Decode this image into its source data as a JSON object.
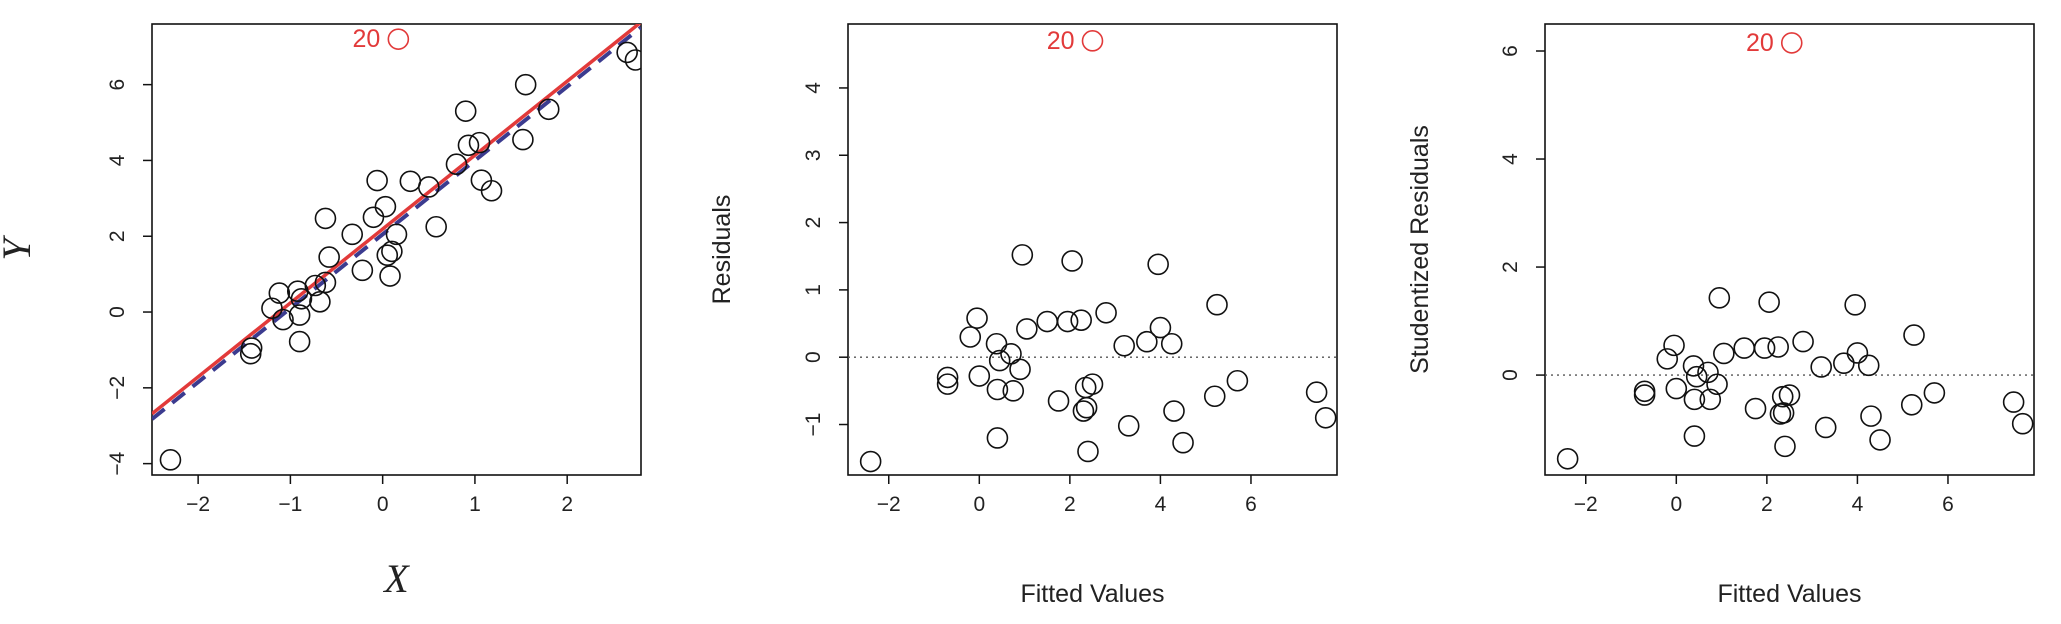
{
  "colors": {
    "outlier": "#e23a3a",
    "ls_line": "#e23a3a",
    "dashed_line": "#3b3b8f",
    "points": "#111111"
  },
  "chart_data": [
    {
      "type": "scatter",
      "xlabel": "X",
      "ylabel": "Y",
      "xlim": [
        -2.5,
        2.8
      ],
      "ylim": [
        -4.3,
        7.6
      ],
      "xticks": [
        -2,
        -1,
        0,
        1,
        2
      ],
      "yticks": [
        -4,
        -2,
        0,
        2,
        4,
        6
      ],
      "outlier": {
        "label": "20",
        "x": 0.17,
        "y": 7.2
      },
      "points": [
        [
          -2.3,
          -3.9
        ],
        [
          -1.43,
          -1.1
        ],
        [
          -1.42,
          -0.95
        ],
        [
          -1.2,
          0.1
        ],
        [
          -1.12,
          0.5
        ],
        [
          -1.08,
          -0.2
        ],
        [
          -0.92,
          0.55
        ],
        [
          -0.9,
          -0.08
        ],
        [
          -0.9,
          -0.78
        ],
        [
          -0.88,
          0.35
        ],
        [
          -0.73,
          0.7
        ],
        [
          -0.68,
          0.27
        ],
        [
          -0.62,
          0.78
        ],
        [
          -0.62,
          2.47
        ],
        [
          -0.58,
          1.45
        ],
        [
          -0.33,
          2.05
        ],
        [
          -0.22,
          1.1
        ],
        [
          -0.1,
          2.5
        ],
        [
          -0.06,
          3.47
        ],
        [
          0.03,
          2.78
        ],
        [
          0.05,
          1.5
        ],
        [
          0.08,
          0.95
        ],
        [
          0.1,
          1.6
        ],
        [
          0.15,
          2.05
        ],
        [
          0.3,
          3.45
        ],
        [
          0.5,
          3.3
        ],
        [
          0.58,
          2.25
        ],
        [
          0.8,
          3.9
        ],
        [
          0.9,
          5.3
        ],
        [
          0.93,
          4.4
        ],
        [
          1.05,
          4.47
        ],
        [
          1.07,
          3.48
        ],
        [
          1.18,
          3.2
        ],
        [
          1.52,
          4.55
        ],
        [
          1.55,
          6.0
        ],
        [
          1.8,
          5.35
        ],
        [
          2.65,
          6.85
        ],
        [
          2.74,
          6.65
        ]
      ],
      "fit_lines": [
        {
          "style": "solid",
          "color": "#e23a3a",
          "intercept": 2.19,
          "slope": 1.95
        },
        {
          "style": "dashed",
          "color": "#3b3b8f",
          "intercept": 2.05,
          "slope": 1.95
        }
      ]
    },
    {
      "type": "scatter",
      "xlabel": "Fitted Values",
      "ylabel": "Residuals",
      "xlim": [
        -2.9,
        7.9
      ],
      "ylim": [
        -1.75,
        4.95
      ],
      "xticks": [
        -2,
        0,
        2,
        4,
        6
      ],
      "yticks": [
        -1,
        0,
        1,
        2,
        3,
        4
      ],
      "hline": 0,
      "outlier": {
        "label": "20",
        "x": 2.5,
        "y": 4.7
      },
      "points": [
        [
          -2.4,
          -1.55
        ],
        [
          -0.7,
          -0.3
        ],
        [
          -0.7,
          -0.4
        ],
        [
          -0.2,
          0.3
        ],
        [
          -0.05,
          0.58
        ],
        [
          0,
          -0.28
        ],
        [
          0.38,
          0.2
        ],
        [
          0.4,
          -0.48
        ],
        [
          0.4,
          -1.2
        ],
        [
          0.45,
          -0.05
        ],
        [
          0.7,
          0.05
        ],
        [
          0.75,
          -0.5
        ],
        [
          0.9,
          -0.18
        ],
        [
          0.95,
          1.52
        ],
        [
          1.05,
          0.42
        ],
        [
          1.5,
          0.53
        ],
        [
          1.75,
          -0.65
        ],
        [
          1.95,
          0.53
        ],
        [
          2.05,
          1.43
        ],
        [
          2.25,
          0.55
        ],
        [
          2.3,
          -0.8
        ],
        [
          2.35,
          -0.45
        ],
        [
          2.37,
          -0.75
        ],
        [
          2.4,
          -1.4
        ],
        [
          2.5,
          -0.4
        ],
        [
          2.8,
          0.66
        ],
        [
          3.2,
          0.17
        ],
        [
          3.3,
          -1.02
        ],
        [
          3.7,
          0.23
        ],
        [
          3.95,
          1.38
        ],
        [
          4.0,
          0.44
        ],
        [
          4.25,
          0.2
        ],
        [
          4.3,
          -0.8
        ],
        [
          4.5,
          -1.27
        ],
        [
          5.2,
          -0.58
        ],
        [
          5.25,
          0.78
        ],
        [
          5.7,
          -0.35
        ],
        [
          7.45,
          -0.52
        ],
        [
          7.65,
          -0.9
        ]
      ]
    },
    {
      "type": "scatter",
      "xlabel": "Fitted Values",
      "ylabel": "Studentized Residuals",
      "xlim": [
        -2.9,
        7.9
      ],
      "ylim": [
        -1.85,
        6.5
      ],
      "xticks": [
        -2,
        0,
        2,
        4,
        6
      ],
      "yticks": [
        0,
        2,
        4,
        6
      ],
      "hline": 0,
      "outlier": {
        "label": "20",
        "x": 2.55,
        "y": 6.15
      },
      "points": [
        [
          -2.4,
          -1.55
        ],
        [
          -0.7,
          -0.3
        ],
        [
          -0.7,
          -0.37
        ],
        [
          -0.2,
          0.3
        ],
        [
          -0.05,
          0.55
        ],
        [
          0,
          -0.25
        ],
        [
          0.38,
          0.17
        ],
        [
          0.4,
          -0.45
        ],
        [
          0.4,
          -1.13
        ],
        [
          0.45,
          -0.03
        ],
        [
          0.7,
          0.05
        ],
        [
          0.75,
          -0.45
        ],
        [
          0.9,
          -0.17
        ],
        [
          0.95,
          1.43
        ],
        [
          1.05,
          0.4
        ],
        [
          1.5,
          0.5
        ],
        [
          1.75,
          -0.62
        ],
        [
          1.95,
          0.5
        ],
        [
          2.05,
          1.35
        ],
        [
          2.25,
          0.52
        ],
        [
          2.3,
          -0.72
        ],
        [
          2.35,
          -0.4
        ],
        [
          2.37,
          -0.7
        ],
        [
          2.4,
          -1.32
        ],
        [
          2.5,
          -0.37
        ],
        [
          2.8,
          0.62
        ],
        [
          3.2,
          0.15
        ],
        [
          3.3,
          -0.97
        ],
        [
          3.7,
          0.22
        ],
        [
          3.95,
          1.3
        ],
        [
          4.0,
          0.41
        ],
        [
          4.25,
          0.18
        ],
        [
          4.3,
          -0.76
        ],
        [
          4.5,
          -1.2
        ],
        [
          5.2,
          -0.55
        ],
        [
          5.25,
          0.74
        ],
        [
          5.7,
          -0.33
        ],
        [
          7.45,
          -0.5
        ],
        [
          7.65,
          -0.9
        ]
      ]
    }
  ]
}
